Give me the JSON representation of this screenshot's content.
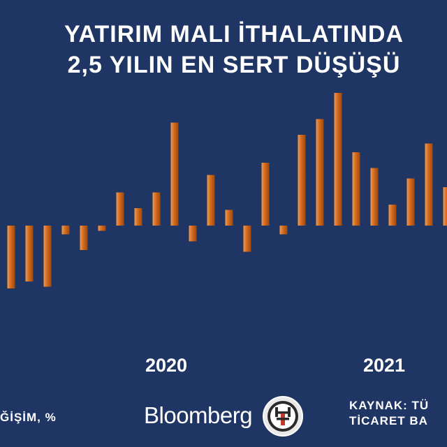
{
  "chart_data": {
    "type": "bar",
    "title_lines": [
      "YATIRIM MALI İTHALATINDA",
      "2,5 YILIN EN SERT DÜŞÜŞÜ"
    ],
    "ylabel": "",
    "unit_label": "ĞİŞİM, %",
    "x_year_labels": [
      {
        "label": "2020",
        "at_bar": 9
      },
      {
        "label": "2021",
        "at_bar": 21
      }
    ],
    "values": [
      -18,
      -16,
      -17.5,
      -2.5,
      -7,
      -1.5,
      9.5,
      5,
      9.5,
      29.5,
      -4.5,
      14.5,
      4.5,
      -7.5,
      18,
      -2.5,
      26,
      30.5,
      38,
      21,
      16.5,
      6,
      13.5,
      23.5,
      11
    ],
    "ylim": [
      -39,
      38
    ],
    "grid": false,
    "colors": {
      "bar": "#d2691e",
      "bar_highlight": "#f0954a",
      "background": "#1f3563"
    }
  },
  "footer": {
    "unit_text": "ĞİŞİM, %",
    "brand": "Bloomberg",
    "logo_letters": "HT",
    "source_line1": "KAYNAK: TÜ",
    "source_line2": "TİCARET BA"
  }
}
